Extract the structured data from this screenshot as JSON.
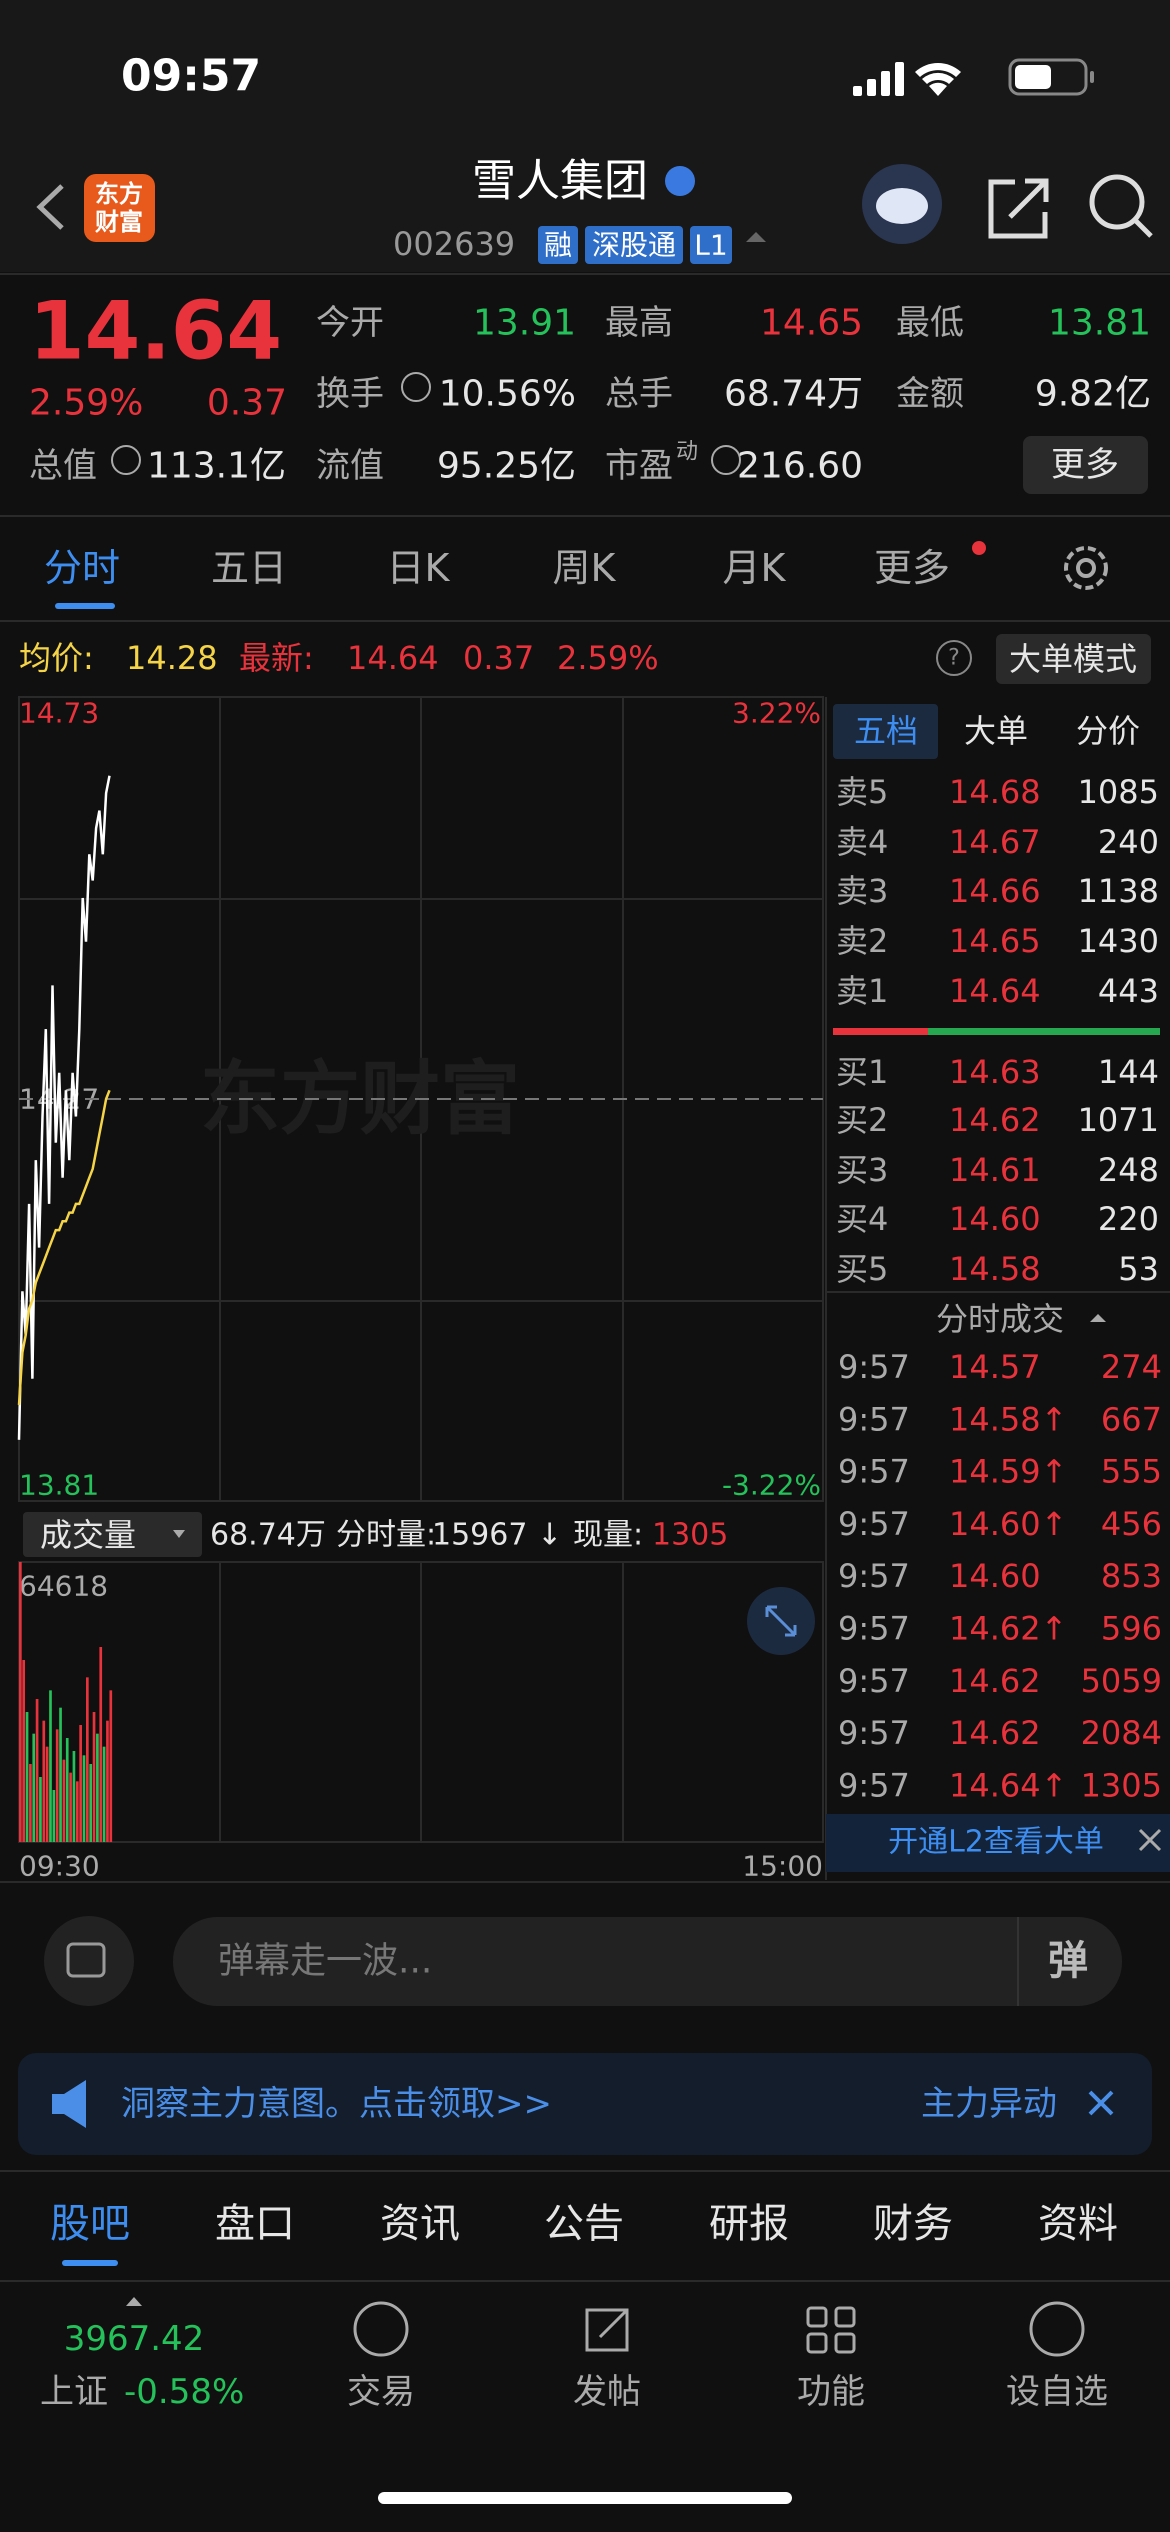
{
  "status": {
    "time": "09:57"
  },
  "header": {
    "logo": [
      "东方",
      "财富"
    ],
    "name": "雪人集团",
    "code": "002639",
    "tags": [
      "融",
      "深股通",
      "L1"
    ]
  },
  "quote": {
    "price": "14.64",
    "pct": "2.59%",
    "chg": "0.37",
    "fields": [
      {
        "label": "今开",
        "value": "13.91"
      },
      {
        "label": "最高",
        "value": "14.65"
      },
      {
        "label": "最低",
        "value": "13.81"
      },
      {
        "label": "换手",
        "value": "10.56%"
      },
      {
        "label": "总手",
        "value": "68.74万"
      },
      {
        "label": "金额",
        "value": "9.82亿"
      },
      {
        "label": "总值",
        "value": "113.1亿"
      },
      {
        "label": "流值",
        "value": "95.25亿"
      },
      {
        "label": "市盈",
        "sup": "动",
        "value": "216.60"
      }
    ],
    "more": "更多"
  },
  "tabs": [
    "分时",
    "五日",
    "日K",
    "周K",
    "月K",
    "更多"
  ],
  "info": {
    "avg_label": "均价:",
    "avg": "14.28",
    "last_label": "最新:",
    "last": "14.64",
    "chg": "0.37",
    "pct": "2.59%",
    "mode": "大单模式"
  },
  "chart_data": [
    {
      "type": "line",
      "watermark": "东方财富",
      "xlim": [
        0,
        240
      ],
      "x": [
        0,
        1,
        2,
        3,
        4,
        5,
        6,
        7,
        8,
        9,
        10,
        11,
        12,
        13,
        14,
        15,
        16,
        17,
        18,
        19,
        20,
        21,
        22,
        23,
        24,
        25,
        26,
        27
      ],
      "ylim": [
        13.81,
        14.73
      ],
      "yticks": [
        13.81,
        14.27,
        14.73
      ],
      "y2lim": [
        -3.22,
        3.22
      ],
      "y2ticks": [
        {
          "value": -3.22,
          "label": "-3.22%"
        },
        {
          "value": 3.22,
          "label": "3.22%"
        }
      ],
      "series": [
        {
          "color": "#ffffff",
          "values": [
            13.88,
            14.05,
            14.0,
            14.15,
            13.95,
            14.2,
            14.1,
            14.25,
            14.35,
            14.15,
            14.4,
            14.22,
            14.3,
            14.18,
            14.28,
            14.2,
            14.3,
            14.25,
            14.35,
            14.5,
            14.45,
            14.55,
            14.52,
            14.58,
            14.6,
            14.55,
            14.62,
            14.64
          ]
        },
        {
          "color": "#f5d547",
          "values": [
            13.92,
            13.98,
            14.0,
            14.03,
            14.04,
            14.06,
            14.07,
            14.08,
            14.09,
            14.1,
            14.11,
            14.12,
            14.12,
            14.13,
            14.13,
            14.14,
            14.14,
            14.15,
            14.15,
            14.16,
            14.17,
            14.18,
            14.19,
            14.21,
            14.23,
            14.25,
            14.27,
            14.28
          ]
        }
      ]
    },
    {
      "type": "bar",
      "xlim": [
        0,
        240
      ],
      "xticks": [
        {
          "value": 0,
          "label": "09:30"
        },
        {
          "value": 240,
          "label": "15:00"
        }
      ],
      "x": [
        0,
        1,
        2,
        3,
        4,
        5,
        6,
        7,
        8,
        9,
        10,
        11,
        12,
        13,
        14,
        15,
        16,
        17,
        18,
        19,
        20,
        21,
        22,
        23,
        24,
        25,
        26,
        27
      ],
      "ylim": [
        0,
        64618
      ],
      "yticks": [
        64618
      ],
      "values": [
        64618,
        42000,
        30000,
        18000,
        25000,
        33000,
        15000,
        28000,
        22000,
        35000,
        12000,
        26000,
        31000,
        19000,
        24000,
        16000,
        21000,
        14000,
        27000,
        20000,
        38000,
        18000,
        30000,
        25000,
        45000,
        22000,
        28000,
        35000
      ],
      "colors": [
        "#e8323c",
        "#e8323c",
        "#25c15a",
        "#e8323c",
        "#25c15a",
        "#e8323c",
        "#25c15a",
        "#e8323c",
        "#e8323c",
        "#25c15a",
        "#25c15a",
        "#e8323c",
        "#25c15a",
        "#e8323c",
        "#25c15a",
        "#e8323c",
        "#25c15a",
        "#e8323c",
        "#e8323c",
        "#25c15a",
        "#e8323c",
        "#25c15a",
        "#e8323c",
        "#25c15a",
        "#e8323c",
        "#25c15a",
        "#e8323c",
        "#e8323c"
      ]
    }
  ],
  "vol_header": {
    "label": "成交量",
    "total": "68.74万",
    "minute_label": "分时量:",
    "minute": "15967 ↓",
    "now_label": "现量:",
    "now": "1305"
  },
  "book": {
    "tabs": [
      "五档",
      "大单",
      "分价"
    ],
    "asks": [
      {
        "label": "卖5",
        "price": "14.68",
        "vol": "1085"
      },
      {
        "label": "卖4",
        "price": "14.67",
        "vol": "240"
      },
      {
        "label": "卖3",
        "price": "14.66",
        "vol": "1138"
      },
      {
        "label": "卖2",
        "price": "14.65",
        "vol": "1430"
      },
      {
        "label": "卖1",
        "price": "14.64",
        "vol": "443"
      }
    ],
    "bids": [
      {
        "label": "买1",
        "price": "14.63",
        "vol": "144"
      },
      {
        "label": "买2",
        "price": "14.62",
        "vol": "1071"
      },
      {
        "label": "买3",
        "price": "14.61",
        "vol": "248"
      },
      {
        "label": "买4",
        "price": "14.60",
        "vol": "220"
      },
      {
        "label": "买5",
        "price": "14.58",
        "vol": "53"
      }
    ],
    "l2": "开通L2查看大单"
  },
  "trades": {
    "title": "分时成交",
    "rows": [
      {
        "time": "9:57",
        "price": "14.57",
        "vol": "274"
      },
      {
        "time": "9:57",
        "price": "14.58↑",
        "vol": "667"
      },
      {
        "time": "9:57",
        "price": "14.59↑",
        "vol": "555"
      },
      {
        "time": "9:57",
        "price": "14.60↑",
        "vol": "456"
      },
      {
        "time": "9:57",
        "price": "14.60",
        "vol": "853"
      },
      {
        "time": "9:57",
        "price": "14.62↑",
        "vol": "596"
      },
      {
        "time": "9:57",
        "price": "14.62",
        "vol": "5059"
      },
      {
        "time": "9:57",
        "price": "14.62",
        "vol": "2084"
      },
      {
        "time": "9:57",
        "price": "14.64↑",
        "vol": "1305"
      }
    ]
  },
  "comment": {
    "placeholder": "弹幕走一波...",
    "send": "弹"
  },
  "banner": {
    "text": "洞察主力意图。点击领取>>",
    "tag": "主力异动"
  },
  "bottom_tabs": [
    "股吧",
    "盘口",
    "资讯",
    "公告",
    "研报",
    "财务",
    "资料"
  ],
  "nav": {
    "index": {
      "value": "3967.42",
      "name": "上证",
      "pct": "-0.58%"
    },
    "items": [
      "交易",
      "发帖",
      "功能",
      "设自选"
    ]
  }
}
